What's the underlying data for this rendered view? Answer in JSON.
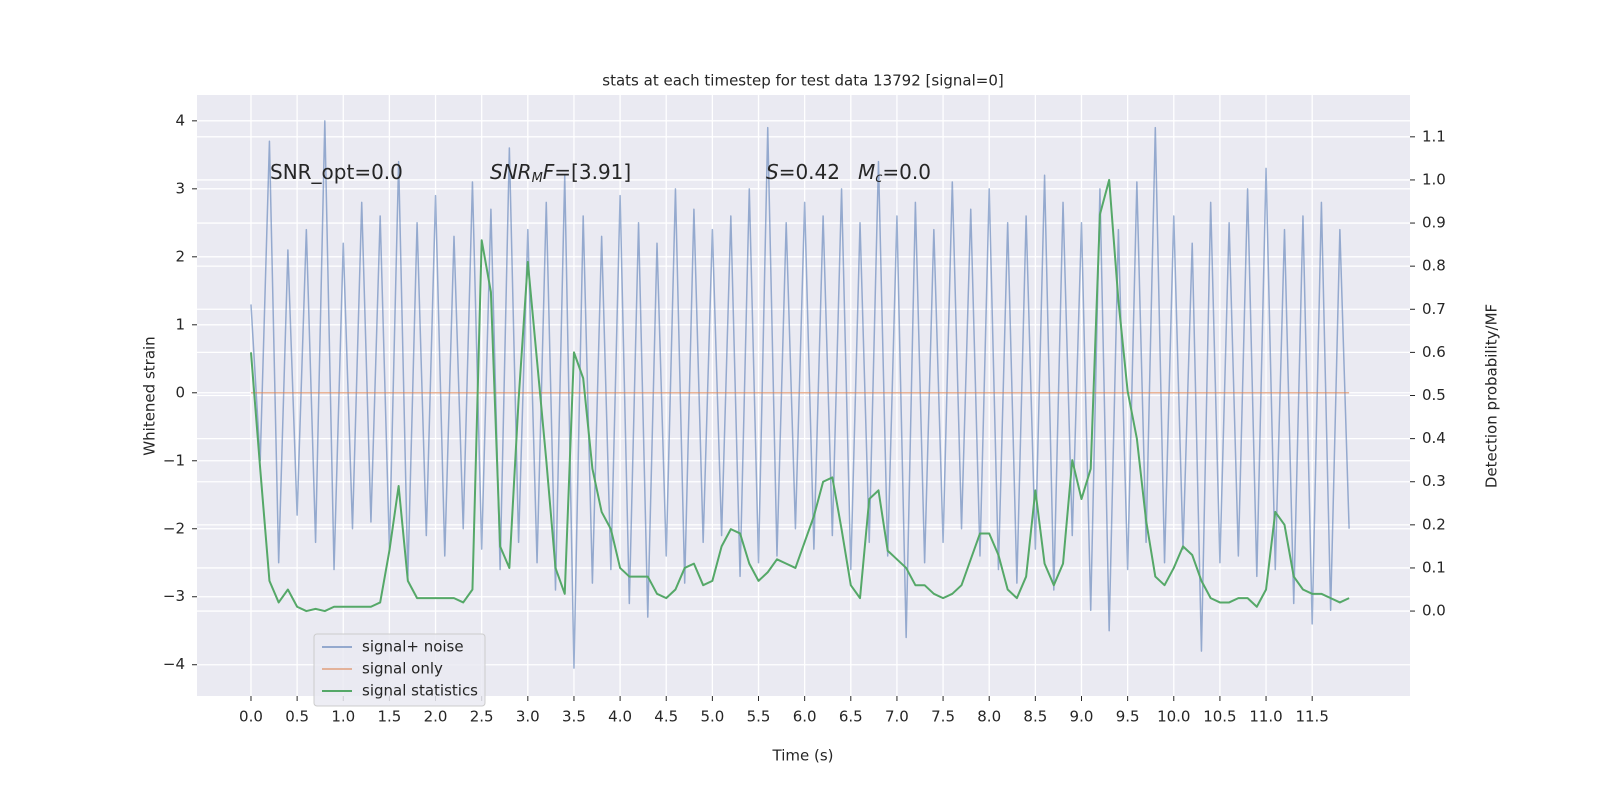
{
  "chart_data": {
    "type": "line",
    "title": "stats at each timestep for test data 13792 [signal=0]",
    "x_label": "Time (s)",
    "y_label": "Whitened strain",
    "y2_label": "Detection probability/MF",
    "annotations": [
      [
        "SNR_opt=0.0"
      ],
      [
        "SNR",
        "M",
        "F",
        "=[3.91]"
      ],
      [
        "S",
        "=0.42"
      ],
      [
        "M",
        "c",
        "=0.0"
      ]
    ],
    "grid": true,
    "legend_loc": "lower left",
    "xlim": [
      -0.585,
      12.56
    ],
    "ylim": [
      -4.46,
      4.38
    ],
    "y2lim": [
      -0.197,
      1.197
    ],
    "xticks": [
      {
        "value": 0,
        "label": "0.0"
      },
      0.5,
      {
        "value": 1,
        "label": "1.0"
      },
      1.5,
      {
        "value": 2,
        "label": "2.0"
      },
      2.5,
      {
        "value": 3,
        "label": "3.0"
      },
      3.5,
      {
        "value": 4,
        "label": "4.0"
      },
      4.5,
      {
        "value": 5,
        "label": "5.0"
      },
      5.5,
      {
        "value": 6,
        "label": "6.0"
      },
      6.5,
      {
        "value": 7,
        "label": "7.0"
      },
      7.5,
      {
        "value": 8,
        "label": "8.0"
      },
      8.5,
      {
        "value": 9,
        "label": "9.0"
      },
      9.5,
      {
        "value": 10,
        "label": "10.0"
      },
      10.5,
      {
        "value": 11,
        "label": "11.0"
      },
      11.5
    ],
    "yticks": [
      {
        "value": -4,
        "label": "−4"
      },
      {
        "value": -3,
        "label": "−3"
      },
      {
        "value": -2,
        "label": "−2"
      },
      {
        "value": -1,
        "label": "−1"
      },
      0,
      1,
      2,
      3,
      4
    ],
    "y2ticks": [
      {
        "value": 0,
        "label": "0.0"
      },
      0.1,
      0.2,
      0.3,
      0.4,
      0.5,
      0.6,
      0.7,
      0.8,
      0.9,
      {
        "value": 1,
        "label": "1.0"
      },
      1.1
    ],
    "x": [
      0,
      0.1,
      0.2,
      0.3,
      0.4,
      0.5,
      0.6,
      0.7,
      0.8,
      0.9,
      1,
      1.1,
      1.2,
      1.3,
      1.4,
      1.5,
      1.6,
      1.7,
      1.8,
      1.9,
      2,
      2.1,
      2.2,
      2.3,
      2.4,
      2.5,
      2.6,
      2.7,
      2.8,
      2.9,
      3,
      3.1,
      3.2,
      3.3,
      3.4,
      3.5,
      3.6,
      3.7,
      3.8,
      3.9,
      4,
      4.1,
      4.2,
      4.3,
      4.4,
      4.5,
      4.6,
      4.7,
      4.8,
      4.9,
      5,
      5.1,
      5.2,
      5.3,
      5.4,
      5.5,
      5.6,
      5.7,
      5.8,
      5.9,
      6,
      6.1,
      6.2,
      6.3,
      6.4,
      6.5,
      6.6,
      6.7,
      6.8,
      6.9,
      7,
      7.1,
      7.2,
      7.3,
      7.4,
      7.5,
      7.6,
      7.7,
      7.8,
      7.9,
      8,
      8.1,
      8.2,
      8.3,
      8.4,
      8.5,
      8.6,
      8.7,
      8.8,
      8.9,
      9,
      9.1,
      9.2,
      9.3,
      9.4,
      9.5,
      9.6,
      9.7,
      9.8,
      9.9,
      10,
      10.1,
      10.2,
      10.3,
      10.4,
      10.5,
      10.6,
      10.7,
      10.8,
      10.9,
      11,
      11.1,
      11.2,
      11.3,
      11.4,
      11.5,
      11.6,
      11.7,
      11.8,
      11.9
    ],
    "series": [
      {
        "name": "signal+ noise",
        "color": "#4c72b0",
        "axis": "y",
        "values": [
          1.3,
          -1.0,
          3.7,
          -2.5,
          2.1,
          -1.8,
          2.4,
          -2.2,
          4.0,
          -2.6,
          2.2,
          -2.0,
          2.8,
          -1.9,
          2.6,
          -2.3,
          3.4,
          -2.7,
          2.5,
          -2.1,
          2.9,
          -2.4,
          2.3,
          -2.0,
          3.1,
          -2.3,
          2.7,
          -2.6,
          3.6,
          -2.2,
          2.4,
          -2.5,
          2.8,
          -2.9,
          3.2,
          -4.05,
          2.6,
          -2.8,
          2.3,
          -2.6,
          2.9,
          -3.1,
          2.5,
          -3.3,
          2.2,
          -2.4,
          3.0,
          -2.8,
          2.7,
          -2.2,
          2.4,
          -2.1,
          2.6,
          -2.7,
          3.0,
          -2.5,
          3.9,
          -2.4,
          2.5,
          -2.0,
          2.8,
          -2.3,
          2.6,
          -2.1,
          3.0,
          -2.6,
          2.5,
          -2.2,
          3.4,
          -2.4,
          2.6,
          -3.6,
          2.8,
          -2.5,
          2.4,
          -2.2,
          3.1,
          -2.0,
          2.7,
          -2.4,
          3.0,
          -2.6,
          2.5,
          -2.8,
          2.6,
          -2.3,
          3.2,
          -2.9,
          2.8,
          -2.1,
          2.5,
          -3.2,
          3.0,
          -3.5,
          2.4,
          -2.6,
          3.1,
          -2.2,
          3.9,
          -2.5,
          2.6,
          -2.3,
          2.2,
          -3.8,
          2.8,
          -2.5,
          2.5,
          -2.4,
          3.0,
          -2.7,
          3.3,
          -2.6,
          2.4,
          -3.1,
          2.6,
          -3.4,
          2.8,
          -3.2,
          2.4,
          -2.0
        ]
      },
      {
        "name": "signal only",
        "color": "#dd8452",
        "axis": "y",
        "values": [
          0,
          0,
          0,
          0,
          0,
          0,
          0,
          0,
          0,
          0,
          0,
          0,
          0,
          0,
          0,
          0,
          0,
          0,
          0,
          0,
          0,
          0,
          0,
          0,
          0,
          0,
          0,
          0,
          0,
          0,
          0,
          0,
          0,
          0,
          0,
          0,
          0,
          0,
          0,
          0,
          0,
          0,
          0,
          0,
          0,
          0,
          0,
          0,
          0,
          0,
          0,
          0,
          0,
          0,
          0,
          0,
          0,
          0,
          0,
          0,
          0,
          0,
          0,
          0,
          0,
          0,
          0,
          0,
          0,
          0,
          0,
          0,
          0,
          0,
          0,
          0,
          0,
          0,
          0,
          0,
          0,
          0,
          0,
          0,
          0,
          0,
          0,
          0,
          0,
          0,
          0,
          0,
          0,
          0,
          0,
          0,
          0,
          0,
          0,
          0,
          0,
          0,
          0,
          0,
          0,
          0,
          0,
          0,
          0,
          0,
          0,
          0,
          0,
          0,
          0,
          0,
          0,
          0,
          0,
          0
        ]
      },
      {
        "name": "signal statistics",
        "color": "#55a868",
        "axis": "y2",
        "values": [
          0.6,
          0.33,
          0.07,
          0.02,
          0.05,
          0.01,
          0.0,
          0.005,
          0.0,
          0.01,
          0.01,
          0.01,
          0.01,
          0.01,
          0.02,
          0.14,
          0.29,
          0.07,
          0.03,
          0.03,
          0.03,
          0.03,
          0.03,
          0.02,
          0.05,
          0.86,
          0.74,
          0.15,
          0.1,
          0.49,
          0.81,
          0.58,
          0.35,
          0.1,
          0.04,
          0.6,
          0.54,
          0.33,
          0.23,
          0.19,
          0.1,
          0.08,
          0.08,
          0.08,
          0.04,
          0.03,
          0.05,
          0.1,
          0.11,
          0.06,
          0.07,
          0.15,
          0.19,
          0.18,
          0.11,
          0.07,
          0.09,
          0.12,
          0.11,
          0.1,
          0.16,
          0.22,
          0.3,
          0.31,
          0.19,
          0.06,
          0.03,
          0.26,
          0.28,
          0.14,
          0.12,
          0.1,
          0.06,
          0.06,
          0.04,
          0.03,
          0.04,
          0.06,
          0.12,
          0.18,
          0.18,
          0.13,
          0.05,
          0.03,
          0.08,
          0.28,
          0.11,
          0.06,
          0.11,
          0.35,
          0.26,
          0.33,
          0.92,
          1.0,
          0.72,
          0.51,
          0.4,
          0.21,
          0.08,
          0.06,
          0.1,
          0.15,
          0.13,
          0.07,
          0.03,
          0.02,
          0.02,
          0.03,
          0.03,
          0.01,
          0.05,
          0.23,
          0.2,
          0.08,
          0.05,
          0.04,
          0.04,
          0.03,
          0.02,
          0.03
        ]
      }
    ]
  }
}
